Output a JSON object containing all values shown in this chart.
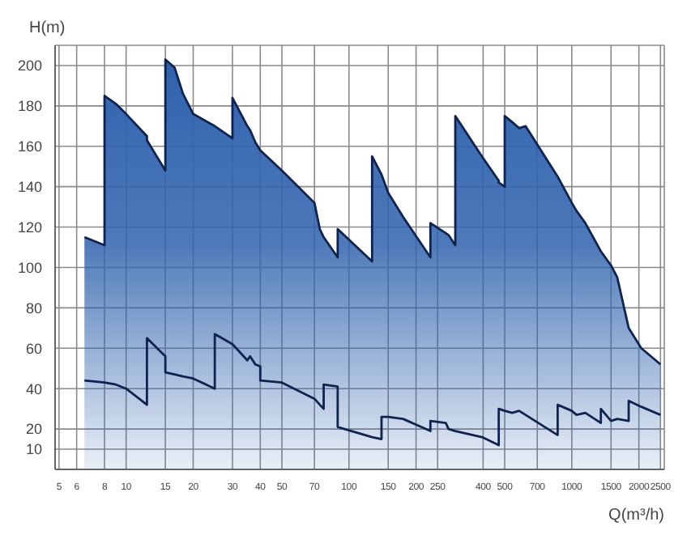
{
  "chart_data": {
    "type": "area",
    "xlabel": "Q(m³/h)",
    "ylabel": "H(m)",
    "log": "x",
    "grid": true,
    "xlim": [
      4.8,
      2600
    ],
    "xticks": [
      5,
      6,
      8,
      10,
      15,
      20,
      30,
      40,
      50,
      70,
      100,
      150,
      200,
      250,
      400,
      500,
      700,
      1000,
      1500,
      2000,
      2500
    ],
    "ylim": [
      0,
      210
    ],
    "yticks": [
      10,
      20,
      40,
      60,
      80,
      100,
      120,
      140,
      160,
      180,
      200
    ],
    "x": [
      6.5,
      8,
      8,
      9,
      10,
      12.4,
      12.4,
      15,
      15,
      16.5,
      18,
      20,
      25,
      25,
      30,
      30,
      35,
      36,
      38,
      40,
      40,
      50,
      70,
      74,
      77,
      77,
      89,
      89,
      127,
      127,
      140,
      140,
      150,
      175,
      232,
      232,
      272,
      280,
      300,
      300,
      395,
      470,
      470,
      500,
      500,
      540,
      580,
      620,
      864,
      864,
      1000,
      1050,
      1150,
      1350,
      1350,
      1500,
      1600,
      1800,
      1800,
      2050,
      2500
    ],
    "series": [
      {
        "color": "#2f62ad",
        "values": [
          115,
          111,
          185,
          181,
          176,
          165,
          163,
          148,
          203,
          199,
          186,
          176,
          170,
          170,
          164,
          184,
          170,
          168,
          162,
          158,
          158,
          148,
          132,
          119,
          115,
          115,
          105,
          119,
          103,
          155,
          146,
          146,
          137,
          125,
          105,
          122,
          117,
          116,
          111,
          175,
          155,
          143,
          142,
          140,
          175,
          172,
          169,
          170,
          145,
          145,
          132,
          128,
          122,
          108,
          108,
          101,
          95,
          70,
          70,
          60,
          52
        ]
      },
      {
        "type": "line",
        "color": "#0f2350",
        "values": [
          44,
          43,
          43,
          42,
          40,
          32,
          65,
          56,
          48,
          47,
          46,
          45,
          40,
          67,
          62,
          62,
          54,
          56,
          52,
          51,
          44,
          43,
          35,
          32,
          30,
          42,
          41,
          21,
          16,
          16,
          15,
          26,
          26,
          25,
          19,
          24,
          23,
          20,
          19,
          19,
          16,
          12,
          30,
          29,
          29,
          28,
          29,
          27,
          17,
          32,
          29,
          27,
          28,
          23,
          30,
          24,
          25,
          24,
          34,
          31,
          27
        ]
      }
    ]
  }
}
